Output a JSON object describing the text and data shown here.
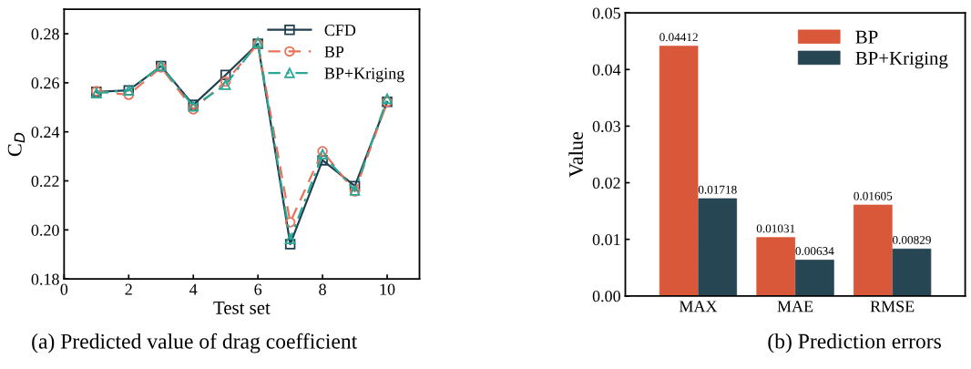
{
  "chart_data": [
    {
      "type": "line",
      "xlabel": "Test set",
      "ylabel": "C$_{D}$",
      "x": [
        1,
        2,
        3,
        4,
        5,
        6,
        7,
        8,
        9,
        10
      ],
      "series": [
        {
          "name": "CFD",
          "color": "#213f4f",
          "marker": "square",
          "line_style": "solid",
          "values": [
            0.2563,
            0.2569,
            0.2668,
            0.251,
            0.2632,
            0.2759,
            0.1942,
            0.2284,
            0.2179,
            0.2522
          ]
        },
        {
          "name": "BP",
          "color": "#e8735a",
          "marker": "circle",
          "line_style": "dashed",
          "values": [
            0.2566,
            0.2551,
            0.2663,
            0.2492,
            0.2605,
            0.2758,
            0.2031,
            0.2321,
            0.2157,
            0.2522
          ]
        },
        {
          "name": "BP+Kriging",
          "color": "#2aa897",
          "marker": "triangle",
          "line_style": "dashdot",
          "values": [
            0.2558,
            0.2569,
            0.2668,
            0.2504,
            0.2592,
            0.2764,
            0.1963,
            0.2309,
            0.2161,
            0.2535
          ]
        }
      ],
      "xlim": [
        0,
        11
      ],
      "xticks": [
        0,
        2,
        4,
        6,
        8,
        10
      ],
      "ylim": [
        0.18,
        0.29
      ],
      "yticks": [
        {
          "value": 0.18,
          "label": "0.18"
        },
        {
          "value": 0.2,
          "label": "0.20"
        },
        {
          "value": 0.22,
          "label": "0.22"
        },
        {
          "value": 0.24,
          "label": "0.24"
        },
        {
          "value": 0.26,
          "label": "0.26"
        },
        {
          "value": 0.28,
          "label": "0.28"
        }
      ],
      "grid": false,
      "legend": "top right",
      "annotations": [
        "(a) Predicted value of drag coefficient"
      ]
    },
    {
      "type": "bar",
      "ylabel": "Value",
      "categories": [
        "MAX",
        "MAE",
        "RMSE"
      ],
      "series": [
        {
          "name": "BP",
          "color": "#d9583a",
          "values": [
            0.04412,
            0.01031,
            0.01605
          ]
        },
        {
          "name": "BP+Kriging",
          "color": "#274654",
          "values": [
            0.01718,
            0.00634,
            0.00829
          ]
        }
      ],
      "ylim": [
        0,
        0.05
      ],
      "yticks": [
        {
          "value": 0,
          "label": "0.00"
        },
        {
          "value": 0.01,
          "label": "0.01"
        },
        {
          "value": 0.02,
          "label": "0.02"
        },
        {
          "value": 0.03,
          "label": "0.03"
        },
        {
          "value": 0.04,
          "label": "0.04"
        },
        {
          "value": 0.05,
          "label": "0.05"
        }
      ],
      "data_labels": true,
      "grid": false,
      "legend": "top right",
      "annotations": [
        "(b) Prediction errors"
      ]
    }
  ]
}
